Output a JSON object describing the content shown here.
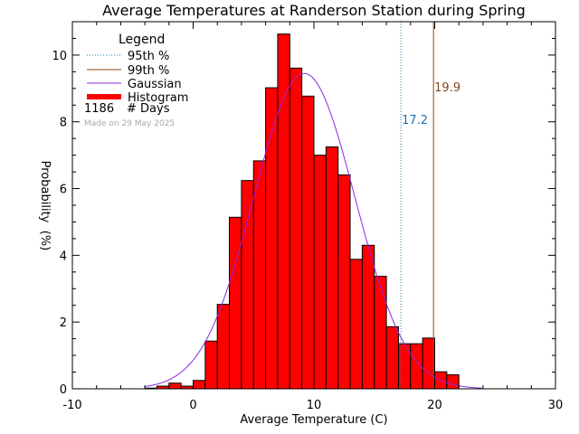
{
  "chart_data": {
    "type": "bar",
    "title": "Average Temperatures at Randerson Station during Spring",
    "xlabel": "Average Temperature (C)",
    "ylabel_top": "Probability",
    "ylabel_bottom": "(%)",
    "xlim": [
      -10,
      30
    ],
    "ylim": [
      0,
      11
    ],
    "xticks": [
      "-10",
      "0",
      "10",
      "20",
      "30"
    ],
    "yticks": [
      "0",
      "2",
      "4",
      "6",
      "8",
      "10"
    ],
    "xtick_values": [
      -10,
      0,
      10,
      20,
      30
    ],
    "ytick_values": [
      0,
      2,
      4,
      6,
      8,
      10
    ],
    "bin_width": 1,
    "bin_starts": [
      -4,
      -3,
      -2,
      -1,
      0,
      1,
      2,
      3,
      4,
      5,
      6,
      7,
      8,
      9,
      10,
      11,
      12,
      13,
      14,
      15,
      16,
      17,
      18,
      19,
      20,
      21
    ],
    "values": [
      0.02,
      0.08,
      0.17,
      0.08,
      0.25,
      1.43,
      2.53,
      5.14,
      6.24,
      6.83,
      9.02,
      10.63,
      9.61,
      8.77,
      7.0,
      7.25,
      6.41,
      3.88,
      4.3,
      3.37,
      1.86,
      1.35,
      1.35,
      1.52,
      0.51,
      0.42
    ],
    "percentile_95": 17.2,
    "percentile_99": 19.9,
    "percentile_95_label": "17.2",
    "percentile_99_label": "19.9",
    "gaussian": {
      "mean": 9.2,
      "sigma": 4.2,
      "peak": 9.45
    },
    "legend": {
      "title": "Legend",
      "entries": [
        "95th %",
        "99th %",
        "Gaussian",
        "Histogram"
      ],
      "days_count": "1186",
      "days_label": "# Days",
      "position": "top-left"
    },
    "made_on": "Made on 29 May 2025",
    "colors": {
      "histogram": "#ff0000",
      "p95": "#1f77b4",
      "p99": "#8b4513",
      "gaussian": "#8a2be2",
      "axes": "#000000"
    }
  }
}
